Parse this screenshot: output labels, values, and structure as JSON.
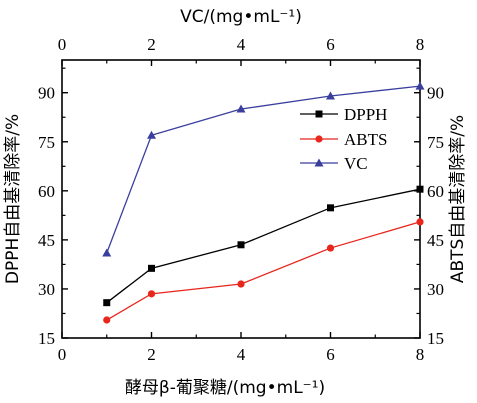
{
  "chart_data": {
    "type": "line",
    "x_bottom": {
      "label": "酵母β-葡聚糖/(mg•mL⁻¹)",
      "range": [
        0,
        8
      ],
      "ticks": [
        "0",
        "2",
        "4",
        "6",
        "8"
      ]
    },
    "x_top": {
      "label": "VC/(mg•mL⁻¹)",
      "range": [
        0,
        8
      ],
      "ticks": [
        "0",
        "2",
        "4",
        "6",
        "8"
      ]
    },
    "y_left": {
      "label": "DPPH自由基清除率/%",
      "range": [
        15,
        100
      ],
      "ticks": [
        "15",
        "30",
        "45",
        "60",
        "75",
        "90"
      ]
    },
    "y_right": {
      "label": "ABTS自由基清除率/%",
      "range": [
        15,
        100
      ],
      "ticks": [
        "15",
        "30",
        "45",
        "60",
        "75",
        "90"
      ]
    },
    "legend_position": "upper-right (inside plot)",
    "series": [
      {
        "name": "DPPH",
        "color": "#000000",
        "marker": "square",
        "x": [
          1,
          2,
          4,
          6,
          8
        ],
        "y": [
          25.8,
          36.3,
          43.5,
          54.8,
          60.5
        ]
      },
      {
        "name": "ABTS",
        "color": "#e8261c",
        "marker": "circle",
        "x": [
          1,
          2,
          4,
          6,
          8
        ],
        "y": [
          20.5,
          28.5,
          31.5,
          42.5,
          50.5
        ]
      },
      {
        "name": "VC",
        "color": "#3a3f9e",
        "marker": "triangle",
        "x": [
          1,
          2,
          4,
          6,
          8
        ],
        "y": [
          41,
          77,
          85,
          89,
          92
        ]
      }
    ]
  }
}
